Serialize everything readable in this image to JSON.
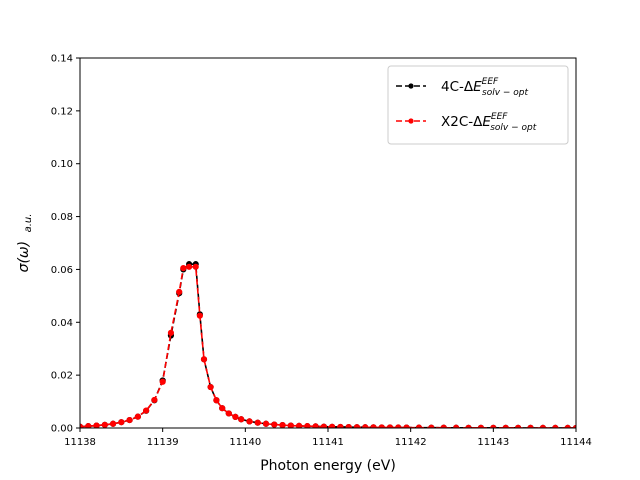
{
  "chart_data": {
    "type": "line",
    "title": "",
    "xlabel": "Photon energy (eV)",
    "ylabel_main": "σ(ω)",
    "ylabel_sub": "a.u.",
    "xlim": [
      11138,
      11144
    ],
    "ylim": [
      0,
      0.14
    ],
    "xticks": [
      11138,
      11139,
      11140,
      11141,
      11142,
      11143,
      11144
    ],
    "yticks": [
      0.0,
      0.02,
      0.04,
      0.06,
      0.08,
      0.1,
      0.12,
      0.14
    ],
    "grid": false,
    "legend_position": "top-right",
    "series": [
      {
        "name": "4C-ΔE^{EEF}_{solv-opt}",
        "name_prefix": "4C-Δ",
        "name_main": "E",
        "name_sup": "EEF",
        "name_sub": "solv − opt",
        "color": "#000000",
        "linestyle": "dashed",
        "marker": "circle",
        "x": [
          11138.0,
          11138.1,
          11138.2,
          11138.3,
          11138.4,
          11138.5,
          11138.6,
          11138.7,
          11138.8,
          11138.9,
          11139.0,
          11139.1,
          11139.2,
          11139.25,
          11139.32,
          11139.4,
          11139.45,
          11139.5,
          11139.58,
          11139.65,
          11139.72,
          11139.8,
          11139.88,
          11139.95,
          11140.05,
          11140.15,
          11140.25,
          11140.35,
          11140.45,
          11140.55,
          11140.65,
          11140.75,
          11140.85,
          11140.95,
          11141.05,
          11141.15,
          11141.25,
          11141.35,
          11141.45,
          11141.55,
          11141.65,
          11141.75,
          11141.85,
          11141.95,
          11142.1,
          11142.25,
          11142.4,
          11142.55,
          11142.7,
          11142.85,
          11143.0,
          11143.15,
          11143.3,
          11143.45,
          11143.6,
          11143.75,
          11143.9,
          11144.0
        ],
        "y": [
          0.0005,
          0.0007,
          0.0009,
          0.0012,
          0.0016,
          0.0022,
          0.003,
          0.0043,
          0.0065,
          0.0105,
          0.018,
          0.035,
          0.051,
          0.06,
          0.062,
          0.062,
          0.043,
          0.026,
          0.0155,
          0.0105,
          0.0075,
          0.0055,
          0.0042,
          0.0033,
          0.0025,
          0.002,
          0.0016,
          0.0013,
          0.0011,
          0.0009,
          0.0008,
          0.0007,
          0.0006,
          0.0005,
          0.00045,
          0.0004,
          0.00035,
          0.0003,
          0.00028,
          0.00025,
          0.00022,
          0.0002,
          0.00018,
          0.00016,
          0.00014,
          0.00012,
          0.0001,
          9e-05,
          8e-05,
          7e-05,
          6e-05,
          6e-05,
          5e-05,
          5e-05,
          4e-05,
          4e-05,
          4e-05,
          3e-05
        ]
      },
      {
        "name": "X2C-ΔE^{EEF}_{solv-opt}",
        "name_prefix": "X2C-Δ",
        "name_main": "E",
        "name_sup": "EEF",
        "name_sub": "solv − opt",
        "color": "#ff0000",
        "linestyle": "dashed",
        "marker": "circle",
        "x": [
          11138.0,
          11138.1,
          11138.2,
          11138.3,
          11138.4,
          11138.5,
          11138.6,
          11138.7,
          11138.8,
          11138.9,
          11139.0,
          11139.1,
          11139.2,
          11139.25,
          11139.32,
          11139.4,
          11139.45,
          11139.5,
          11139.58,
          11139.65,
          11139.72,
          11139.8,
          11139.88,
          11139.95,
          11140.05,
          11140.15,
          11140.25,
          11140.35,
          11140.45,
          11140.55,
          11140.65,
          11140.75,
          11140.85,
          11140.95,
          11141.05,
          11141.15,
          11141.25,
          11141.35,
          11141.45,
          11141.55,
          11141.65,
          11141.75,
          11141.85,
          11141.95,
          11142.1,
          11142.25,
          11142.4,
          11142.55,
          11142.7,
          11142.85,
          11143.0,
          11143.15,
          11143.3,
          11143.45,
          11143.6,
          11143.75,
          11143.9,
          11144.0
        ],
        "y": [
          0.0005,
          0.0007,
          0.0009,
          0.0012,
          0.0016,
          0.0022,
          0.003,
          0.0043,
          0.0066,
          0.0106,
          0.0175,
          0.036,
          0.0515,
          0.0605,
          0.061,
          0.061,
          0.0425,
          0.026,
          0.0155,
          0.0105,
          0.0075,
          0.0055,
          0.0042,
          0.0033,
          0.0025,
          0.002,
          0.0016,
          0.0013,
          0.0011,
          0.0009,
          0.0008,
          0.0007,
          0.0006,
          0.0005,
          0.00045,
          0.0004,
          0.00035,
          0.0003,
          0.00028,
          0.00025,
          0.00022,
          0.0002,
          0.00018,
          0.00016,
          0.00014,
          0.00012,
          0.0001,
          9e-05,
          8e-05,
          7e-05,
          6e-05,
          6e-05,
          5e-05,
          5e-05,
          4e-05,
          4e-05,
          4e-05,
          3e-05
        ]
      }
    ]
  }
}
